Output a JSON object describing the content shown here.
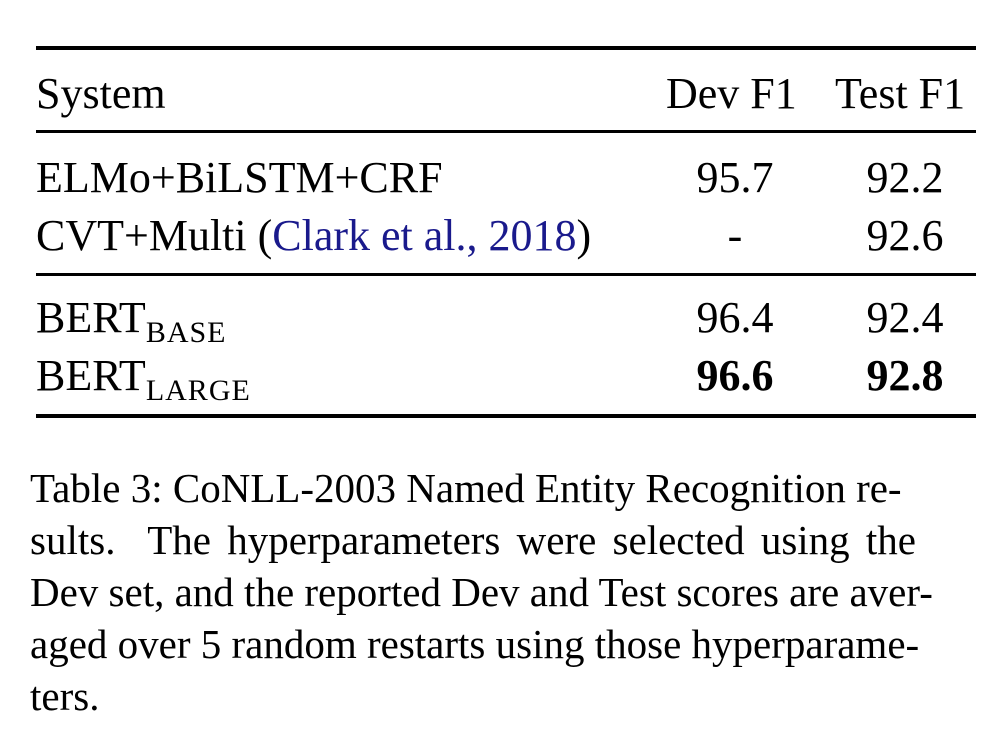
{
  "table": {
    "headers": {
      "system": "System",
      "dev": "Dev F1",
      "test": "Test F1"
    },
    "rows": [
      {
        "system": "ELMo+BiLSTM+CRF",
        "dev": "95.7",
        "test": "92.2"
      },
      {
        "system_prefix": "CVT+Multi (",
        "citation": "Clark et al., 2018",
        "system_suffix": ")",
        "dev": "-",
        "test": "92.6"
      },
      {
        "system": "BERT",
        "system_sub": "BASE",
        "dev": "96.4",
        "test": "92.4"
      },
      {
        "system": "BERT",
        "system_sub": "LARGE",
        "dev": "96.6",
        "test": "92.8",
        "bold": true
      }
    ]
  },
  "caption": {
    "line1": "Table 3: CoNLL-2003 Named Entity Recognition re-",
    "line2": "sults.  The hyperparameters were selected using the",
    "line3": "Dev set, and the reported Dev and Test scores are aver-",
    "line4": "aged over 5 random restarts using those hyperparame-",
    "line5": "ters."
  },
  "colors": {
    "citation": "#1a1a8c",
    "text": "#000000"
  }
}
